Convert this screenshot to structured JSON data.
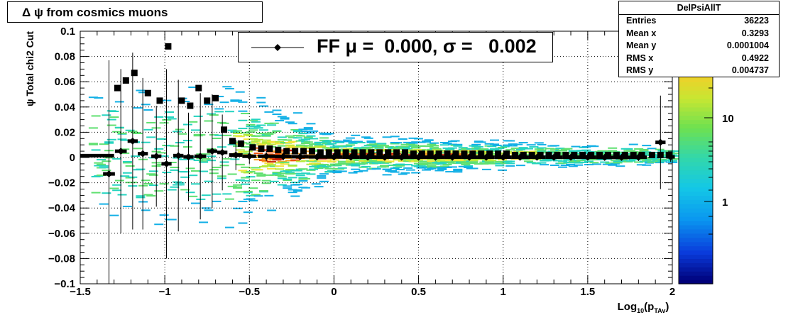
{
  "page_title": "Δ ψ  from cosmics muons",
  "stats": {
    "name": "DelPsiAllT",
    "rows": [
      {
        "label": "Entries",
        "value": "36223"
      },
      {
        "label": "Mean x",
        "value": "0.3293"
      },
      {
        "label": "Mean y",
        "value": "0.0001004"
      },
      {
        "label": "RMS x",
        "value": "0.4922"
      },
      {
        "label": "RMS y",
        "value": "0.004737"
      }
    ]
  },
  "legend": {
    "text": "FF μ =  0.000, σ =   0.002",
    "marker": "diamond"
  },
  "colors": {
    "profile": "#000000",
    "palette": [
      "#0a0a7a",
      "#0a4bd8",
      "#13b0e6",
      "#25d4c0",
      "#5fe070",
      "#b5ea3a",
      "#f2e43a",
      "#f7a21e",
      "#f0550f",
      "#c8200a"
    ]
  },
  "chart_data": {
    "type": "heatmap",
    "title": "Δ ψ  from cosmics muons",
    "xlabel": "Log10(pTAv)",
    "ylabel": "ψ  Total chi2 Cut",
    "xlim": [
      -1.5,
      2
    ],
    "ylim": [
      -0.1,
      0.1
    ],
    "x_ticks": [
      "−1.5",
      "−1",
      "−0.5",
      "0",
      "0.5",
      "1",
      "1.5",
      "2"
    ],
    "y_ticks": [
      "−0.1",
      "−0.08",
      "−0.06",
      "−0.04",
      "−0.02",
      "0",
      "0.02",
      "0.04",
      "0.06",
      "0.08",
      "0.1"
    ],
    "z_ticks": [
      "1",
      "10"
    ],
    "z_scale": "log",
    "grid": true,
    "stats_placement": "top-right",
    "legend_placement": "top-center",
    "series": [
      {
        "name": "FF",
        "marker": "diamond",
        "points": [
          {
            "x": -1.33,
            "y": -0.013,
            "err": 0.09
          },
          {
            "x": -1.26,
            "y": 0.005,
            "err": 0.065
          },
          {
            "x": -1.19,
            "y": 0.013,
            "err": 0.07
          },
          {
            "x": -1.13,
            "y": 0.003,
            "err": 0.06
          },
          {
            "x": -1.05,
            "y": 0.001,
            "err": 0.04
          },
          {
            "x": -0.99,
            "y": -0.005,
            "err": 0.075
          },
          {
            "x": -0.92,
            "y": 0.0015,
            "err": 0.06
          },
          {
            "x": -0.86,
            "y": 0.0005,
            "err": 0.035
          },
          {
            "x": -0.79,
            "y": 0.001,
            "err": 0.05
          },
          {
            "x": -0.72,
            "y": 0.005,
            "err": 0.045
          },
          {
            "x": -0.66,
            "y": 0.004,
            "err": 0.03
          },
          {
            "x": -0.58,
            "y": 0.002,
            "err": 0.012
          },
          {
            "x": -0.5,
            "y": 0.001,
            "err": 0.006
          },
          {
            "x": -0.4,
            "y": 0.001,
            "err": 0.004
          },
          {
            "x": -0.3,
            "y": 0.0008,
            "err": 0.003
          },
          {
            "x": -0.2,
            "y": 0.0006,
            "err": 0.002
          },
          {
            "x": -0.1,
            "y": 0.0005,
            "err": 0.002
          },
          {
            "x": 0.0,
            "y": 0.0004,
            "err": 0.002
          },
          {
            "x": 0.1,
            "y": 0.0003,
            "err": 0.002
          },
          {
            "x": 0.2,
            "y": 0.0003,
            "err": 0.002
          },
          {
            "x": 0.3,
            "y": 0.0002,
            "err": 0.002
          },
          {
            "x": 0.4,
            "y": 0.0002,
            "err": 0.002
          },
          {
            "x": 0.5,
            "y": 0.0002,
            "err": 0.002
          },
          {
            "x": 0.6,
            "y": 0.0002,
            "err": 0.002
          },
          {
            "x": 0.7,
            "y": 0.0002,
            "err": 0.002
          },
          {
            "x": 0.8,
            "y": 0.0002,
            "err": 0.002
          },
          {
            "x": 0.9,
            "y": 0.0002,
            "err": 0.002
          },
          {
            "x": 1.0,
            "y": 0.0002,
            "err": 0.002
          },
          {
            "x": 1.1,
            "y": 0.0002,
            "err": 0.002
          },
          {
            "x": 1.2,
            "y": 0.0002,
            "err": 0.002
          },
          {
            "x": 1.3,
            "y": 0.0002,
            "err": 0.002
          },
          {
            "x": 1.4,
            "y": 0.0002,
            "err": 0.002
          },
          {
            "x": 1.5,
            "y": 0.0002,
            "err": 0.002
          },
          {
            "x": 1.6,
            "y": 0.0001,
            "err": 0.002
          },
          {
            "x": 1.7,
            "y": 0.0001,
            "err": 0.002
          },
          {
            "x": 1.8,
            "y": 0.0002,
            "err": 0.003
          },
          {
            "x": 1.93,
            "y": 0.012,
            "err": 0.037
          },
          {
            "x": 1.99,
            "y": 0.0005,
            "err": 0.004
          }
        ]
      },
      {
        "name": "",
        "marker": "square",
        "points": [
          {
            "x": -1.28,
            "y": 0.055
          },
          {
            "x": -1.23,
            "y": 0.061
          },
          {
            "x": -1.18,
            "y": 0.067
          },
          {
            "x": -1.1,
            "y": 0.051
          },
          {
            "x": -1.03,
            "y": 0.045
          },
          {
            "x": -0.98,
            "y": 0.088
          },
          {
            "x": -0.9,
            "y": 0.045
          },
          {
            "x": -0.85,
            "y": 0.041
          },
          {
            "x": -0.8,
            "y": 0.055
          },
          {
            "x": -0.75,
            "y": 0.045
          },
          {
            "x": -0.7,
            "y": 0.047
          },
          {
            "x": -0.65,
            "y": 0.022
          },
          {
            "x": -0.6,
            "y": 0.013
          },
          {
            "x": -0.55,
            "y": 0.011
          },
          {
            "x": -0.48,
            "y": 0.008
          },
          {
            "x": -0.43,
            "y": 0.007
          },
          {
            "x": -0.38,
            "y": 0.007
          },
          {
            "x": -0.33,
            "y": 0.006
          },
          {
            "x": -0.28,
            "y": 0.005
          },
          {
            "x": -0.23,
            "y": 0.005
          },
          {
            "x": -0.18,
            "y": 0.005
          },
          {
            "x": -0.13,
            "y": 0.005
          },
          {
            "x": -0.08,
            "y": 0.004
          },
          {
            "x": -0.03,
            "y": 0.004
          },
          {
            "x": 0.02,
            "y": 0.004
          },
          {
            "x": 0.07,
            "y": 0.004
          },
          {
            "x": 0.12,
            "y": 0.004
          },
          {
            "x": 0.17,
            "y": 0.004
          },
          {
            "x": 0.22,
            "y": 0.004
          },
          {
            "x": 0.27,
            "y": 0.004
          },
          {
            "x": 0.32,
            "y": 0.004
          },
          {
            "x": 0.37,
            "y": 0.004
          },
          {
            "x": 0.42,
            "y": 0.004
          },
          {
            "x": 0.47,
            "y": 0.003
          },
          {
            "x": 0.52,
            "y": 0.003
          },
          {
            "x": 0.57,
            "y": 0.003
          },
          {
            "x": 0.62,
            "y": 0.003
          },
          {
            "x": 0.67,
            "y": 0.003
          },
          {
            "x": 0.72,
            "y": 0.003
          },
          {
            "x": 0.77,
            "y": 0.003
          },
          {
            "x": 0.82,
            "y": 0.003
          },
          {
            "x": 0.87,
            "y": 0.003
          },
          {
            "x": 0.92,
            "y": 0.003
          },
          {
            "x": 0.97,
            "y": 0.003
          },
          {
            "x": 1.02,
            "y": 0.003
          },
          {
            "x": 1.07,
            "y": 0.002
          },
          {
            "x": 1.12,
            "y": 0.002
          },
          {
            "x": 1.17,
            "y": 0.002
          },
          {
            "x": 1.22,
            "y": 0.002
          },
          {
            "x": 1.27,
            "y": 0.002
          },
          {
            "x": 1.32,
            "y": 0.002
          },
          {
            "x": 1.37,
            "y": 0.002
          },
          {
            "x": 1.42,
            "y": 0.002
          },
          {
            "x": 1.47,
            "y": 0.002
          },
          {
            "x": 1.52,
            "y": 0.002
          },
          {
            "x": 1.57,
            "y": 0.002
          },
          {
            "x": 1.62,
            "y": 0.002
          },
          {
            "x": 1.67,
            "y": 0.002
          },
          {
            "x": 1.72,
            "y": 0.002
          },
          {
            "x": 1.77,
            "y": 0.002
          },
          {
            "x": 1.82,
            "y": 0.002
          },
          {
            "x": 1.88,
            "y": 0.002
          },
          {
            "x": 1.93,
            "y": 0.002
          },
          {
            "x": 1.98,
            "y": 0.002
          }
        ]
      }
    ]
  }
}
